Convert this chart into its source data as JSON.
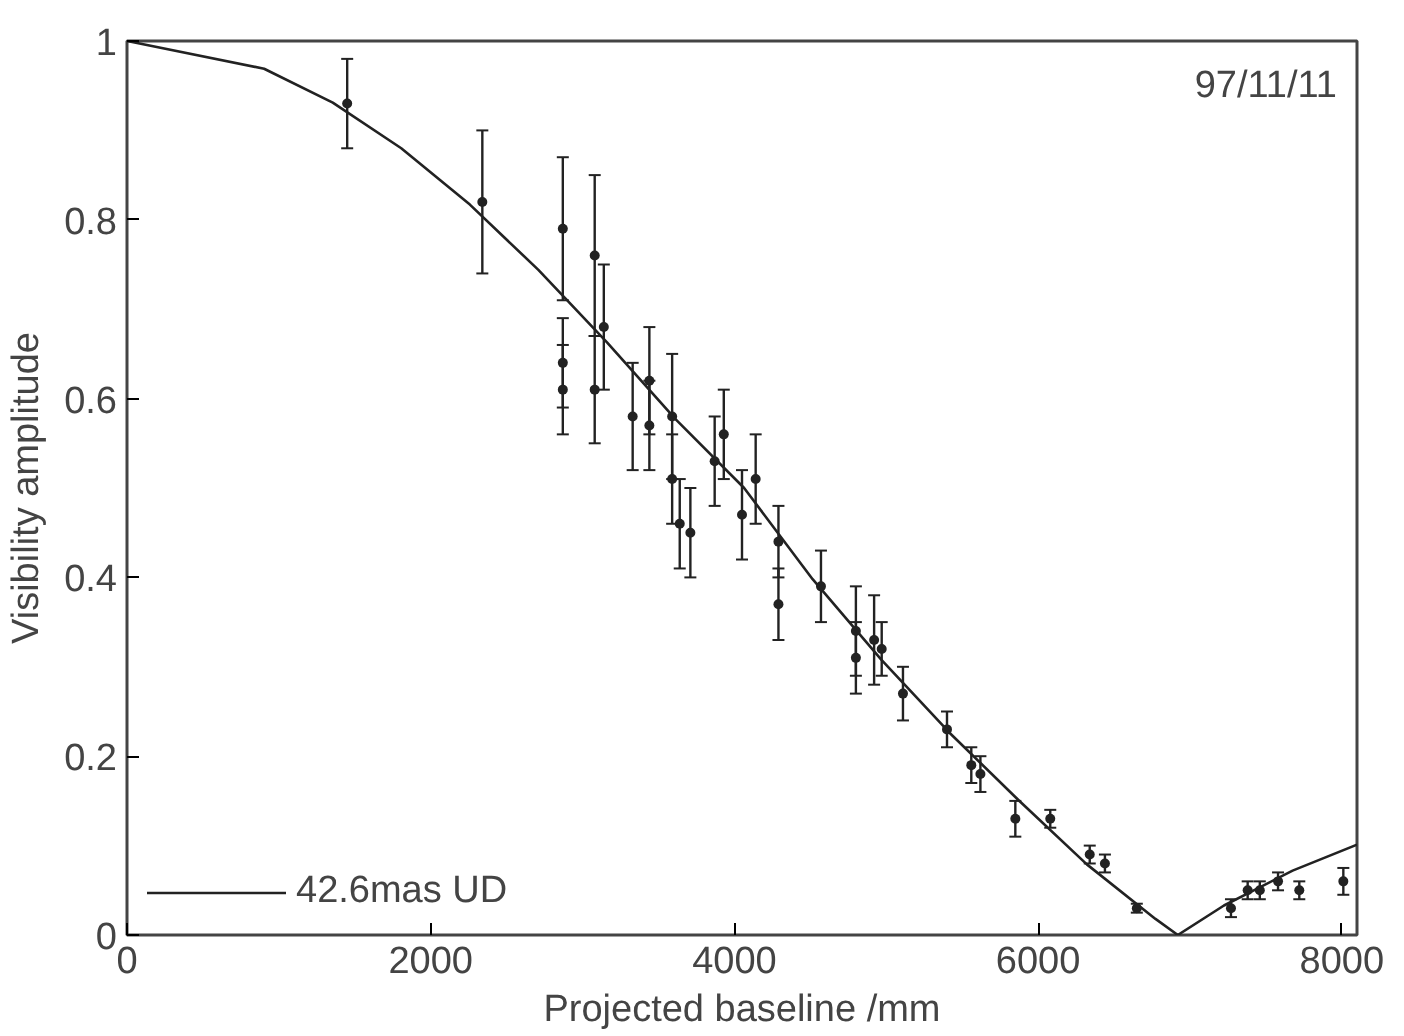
{
  "chart_data": {
    "type": "scatter",
    "xlabel": "Projected baseline /mm",
    "ylabel": "Visibility amplitude",
    "annotations": [
      "97/11/11"
    ],
    "xlim": [
      0,
      8100
    ],
    "ylim": [
      0,
      1
    ],
    "xticks": [
      0,
      2000,
      4000,
      6000,
      8000
    ],
    "yticks": [
      0,
      0.2,
      0.4,
      0.6,
      0.8,
      1
    ],
    "legend": "bottom left",
    "grid": false,
    "series": [
      {
        "color": "#222222",
        "marker": "circle",
        "x": [
          1450,
          2340,
          2870,
          2870,
          2870,
          3080,
          3080,
          3140,
          3330,
          3440,
          3440,
          3590,
          3590,
          3640,
          3710,
          3870,
          3930,
          4050,
          4140,
          4290,
          4290,
          4570,
          4800,
          4800,
          4920,
          4970,
          5110,
          5400,
          5560,
          5620,
          5850,
          6080,
          6340,
          6440,
          6650,
          7270,
          7380,
          7460,
          7580,
          7720,
          8010
        ],
        "values": [
          0.93,
          0.82,
          0.79,
          0.64,
          0.61,
          0.76,
          0.61,
          0.68,
          0.58,
          0.62,
          0.57,
          0.58,
          0.51,
          0.46,
          0.45,
          0.53,
          0.56,
          0.47,
          0.51,
          0.44,
          0.37,
          0.39,
          0.34,
          0.31,
          0.33,
          0.32,
          0.27,
          0.23,
          0.19,
          0.18,
          0.13,
          0.13,
          0.09,
          0.08,
          0.03,
          0.03,
          0.05,
          0.05,
          0.06,
          0.05,
          0.06
        ],
        "errors": [
          0.05,
          0.08,
          0.08,
          0.05,
          0.05,
          0.09,
          0.06,
          0.07,
          0.06,
          0.06,
          0.05,
          0.07,
          0.05,
          0.05,
          0.05,
          0.05,
          0.05,
          0.05,
          0.05,
          0.04,
          0.04,
          0.04,
          0.05,
          0.04,
          0.05,
          0.03,
          0.03,
          0.02,
          0.02,
          0.02,
          0.02,
          0.01,
          0.01,
          0.01,
          0.005,
          0.01,
          0.01,
          0.01,
          0.01,
          0.01,
          0.015
        ]
      },
      {
        "type": "line",
        "name": "42.6mas UD",
        "color": "#222222",
        "x": [
          0,
          903,
          1355,
          1806,
          2258,
          2709,
          3161,
          3612,
          4064,
          4515,
          4967,
          5418,
          5870,
          6321,
          6773,
          6920,
          7224,
          7676,
          8100
        ],
        "values": [
          1,
          0.969,
          0.931,
          0.88,
          0.817,
          0.744,
          0.663,
          0.577,
          0.5,
          0.398,
          0.308,
          0.226,
          0.151,
          0.079,
          0.018,
          0,
          0.033,
          0.072,
          0.101
        ]
      }
    ]
  }
}
